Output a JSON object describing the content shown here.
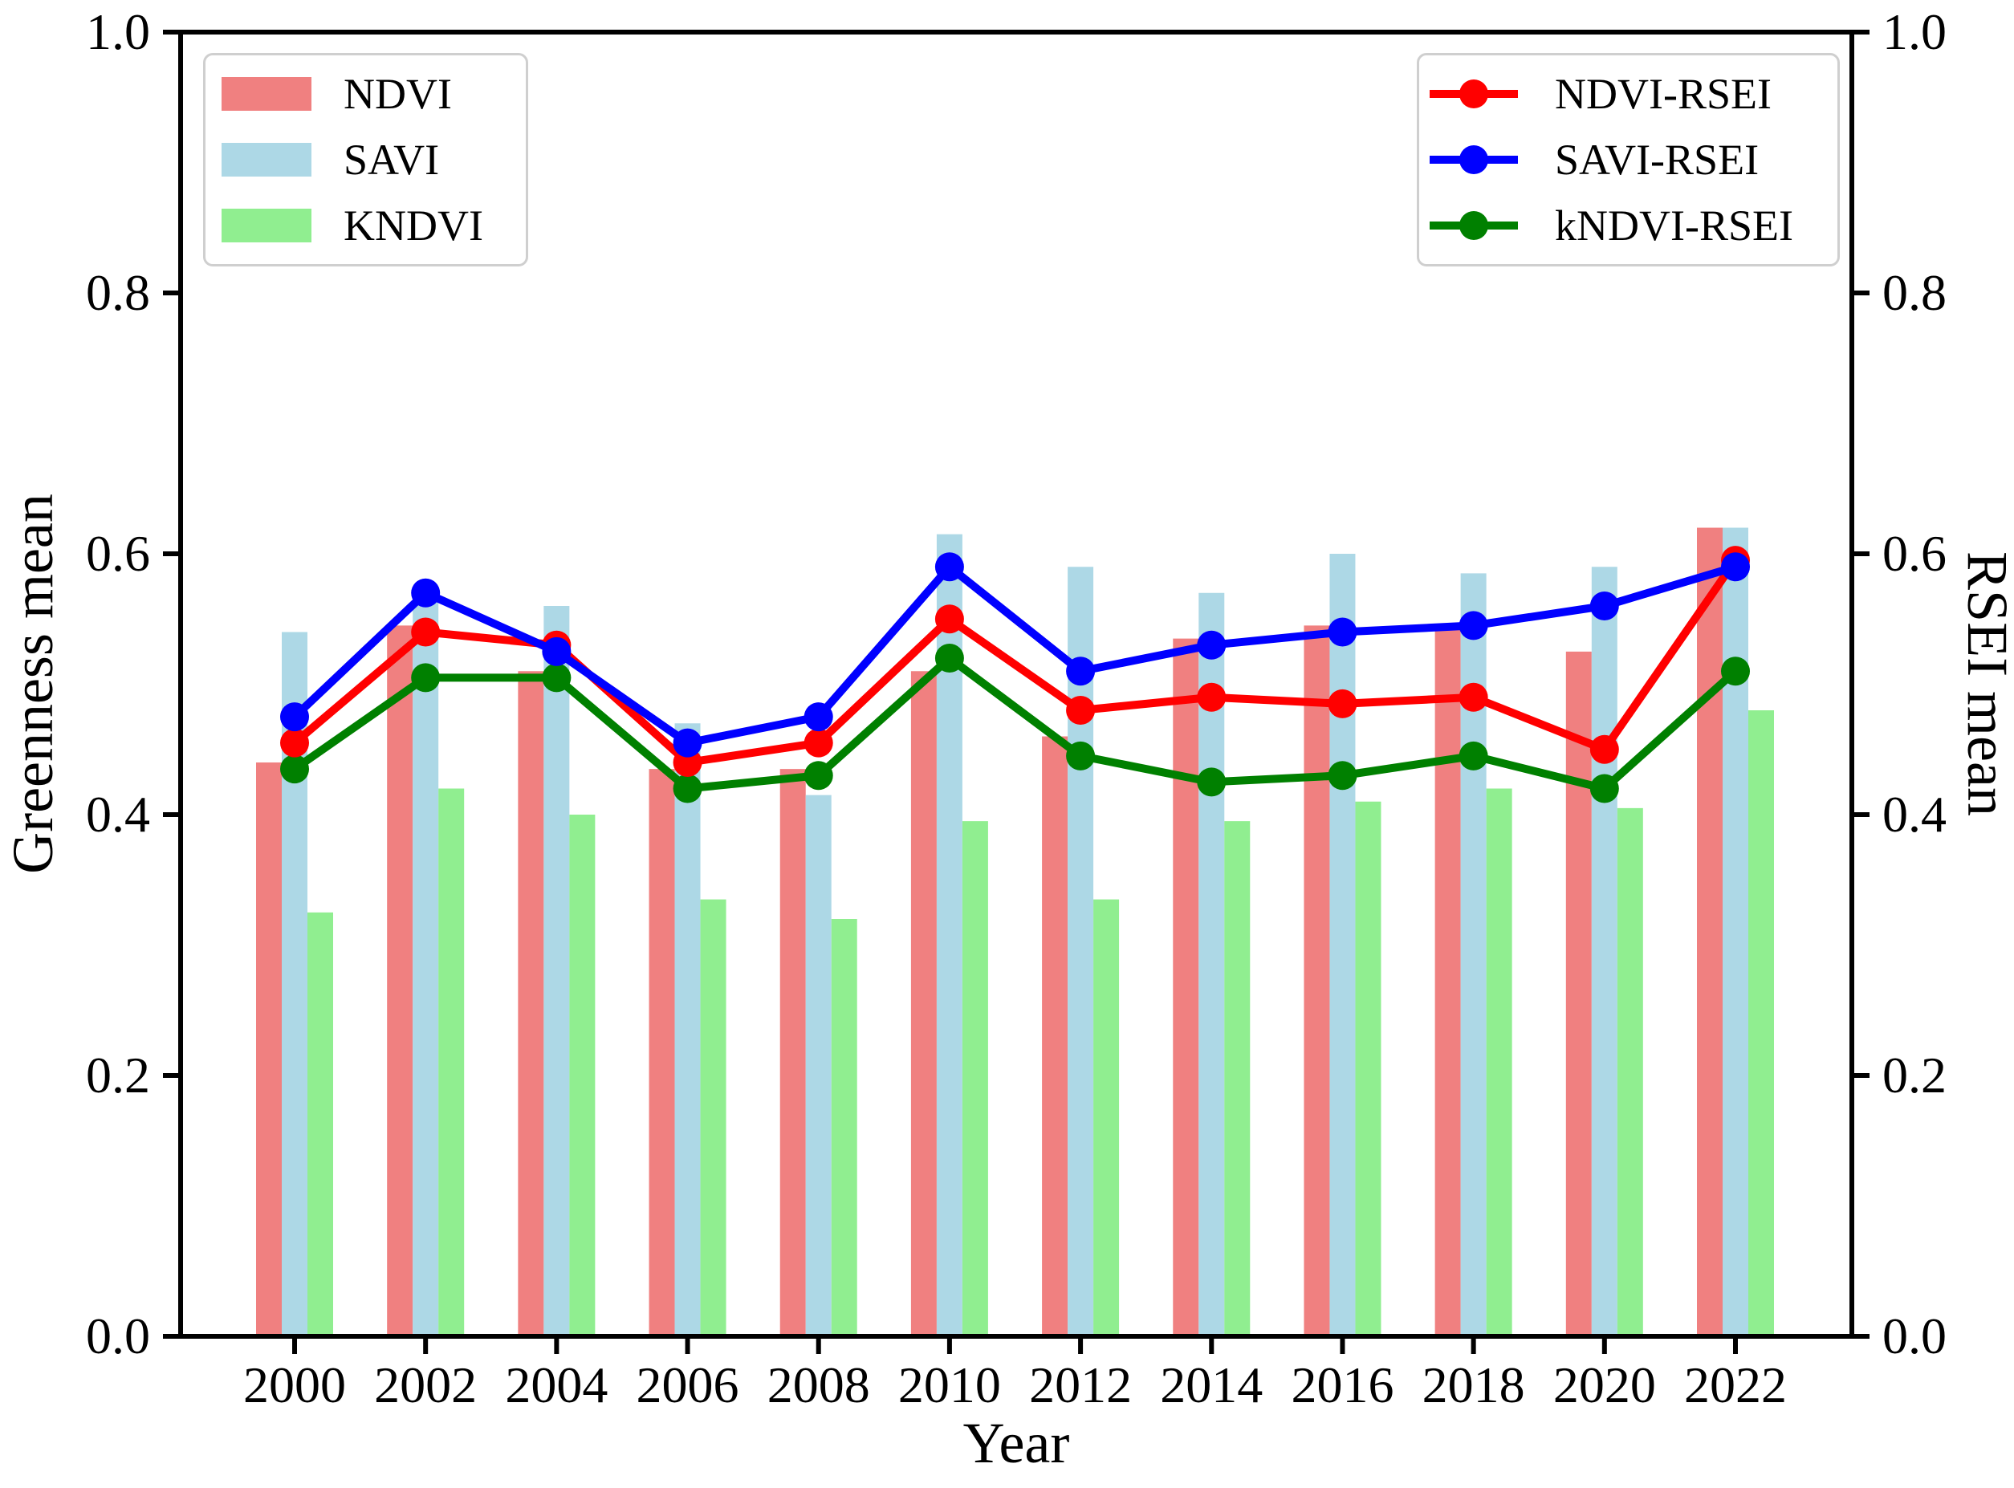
{
  "chart_data": {
    "type": "bar+line",
    "categories": [
      "2000",
      "2002",
      "2004",
      "2006",
      "2008",
      "2010",
      "2012",
      "2014",
      "2016",
      "2018",
      "2020",
      "2022"
    ],
    "bar_series": [
      {
        "name": "NDVI",
        "color": "#F08080",
        "values": [
          0.44,
          0.545,
          0.51,
          0.435,
          0.435,
          0.51,
          0.46,
          0.535,
          0.545,
          0.545,
          0.525,
          0.62
        ]
      },
      {
        "name": "SAVI",
        "color": "#ADD8E6",
        "values": [
          0.54,
          0.565,
          0.56,
          0.47,
          0.415,
          0.615,
          0.59,
          0.57,
          0.6,
          0.585,
          0.59,
          0.62
        ]
      },
      {
        "name": "KNDVI",
        "color": "#90EE90",
        "values": [
          0.325,
          0.42,
          0.4,
          0.335,
          0.32,
          0.395,
          0.335,
          0.395,
          0.41,
          0.42,
          0.405,
          0.48
        ]
      }
    ],
    "line_series": [
      {
        "name": "NDVI-RSEI",
        "color": "#FF0000",
        "values": [
          0.455,
          0.54,
          0.53,
          0.44,
          0.455,
          0.55,
          0.48,
          0.49,
          0.485,
          0.49,
          0.45,
          0.595
        ]
      },
      {
        "name": "SAVI-RSEI",
        "color": "#0000FF",
        "values": [
          0.475,
          0.57,
          0.525,
          0.455,
          0.475,
          0.59,
          0.51,
          0.53,
          0.54,
          0.545,
          0.56,
          0.59
        ]
      },
      {
        "name": "kNDVI-RSEI",
        "color": "#008000",
        "values": [
          0.435,
          0.505,
          0.505,
          0.42,
          0.43,
          0.52,
          0.445,
          0.425,
          0.43,
          0.445,
          0.42,
          0.51
        ]
      }
    ],
    "xlabel": "Year",
    "ylabel_left": "Greenness mean",
    "ylabel_right": "RSEI mean",
    "ylim": [
      0.0,
      1.0
    ],
    "yticks": [
      "0.0",
      "0.2",
      "0.4",
      "0.6",
      "0.8",
      "1.0"
    ],
    "grid": false,
    "legend_left_position": "upper left",
    "legend_right_position": "upper right"
  },
  "legend_bars": {
    "items": [
      {
        "label": "NDVI"
      },
      {
        "label": "SAVI"
      },
      {
        "label": "KNDVI"
      }
    ]
  },
  "legend_lines": {
    "items": [
      {
        "label": "NDVI-RSEI"
      },
      {
        "label": "SAVI-RSEI"
      },
      {
        "label": "kNDVI-RSEI"
      }
    ]
  }
}
